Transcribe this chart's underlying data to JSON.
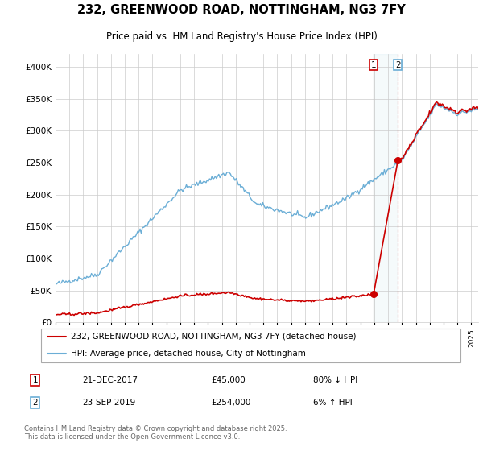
{
  "title": "232, GREENWOOD ROAD, NOTTINGHAM, NG3 7FY",
  "subtitle": "Price paid vs. HM Land Registry's House Price Index (HPI)",
  "background_color": "#ffffff",
  "plot_bg_color": "#ffffff",
  "grid_color": "#cccccc",
  "hpi_color": "#6baed6",
  "price_color": "#cc0000",
  "transaction1_date": "21-DEC-2017",
  "transaction1_price": 45000,
  "transaction1_pct": "80% ↓ HPI",
  "transaction1_year": 2017.958,
  "transaction2_date": "23-SEP-2019",
  "transaction2_price": 254000,
  "transaction2_pct": "6% ↑ HPI",
  "transaction2_year": 2019.708,
  "legend_label1": "232, GREENWOOD ROAD, NOTTINGHAM, NG3 7FY (detached house)",
  "legend_label2": "HPI: Average price, detached house, City of Nottingham",
  "footnote": "Contains HM Land Registry data © Crown copyright and database right 2025.\nThis data is licensed under the Open Government Licence v3.0.",
  "ylim": [
    0,
    420000
  ],
  "xlim_start": 1995,
  "xlim_end": 2025.5
}
